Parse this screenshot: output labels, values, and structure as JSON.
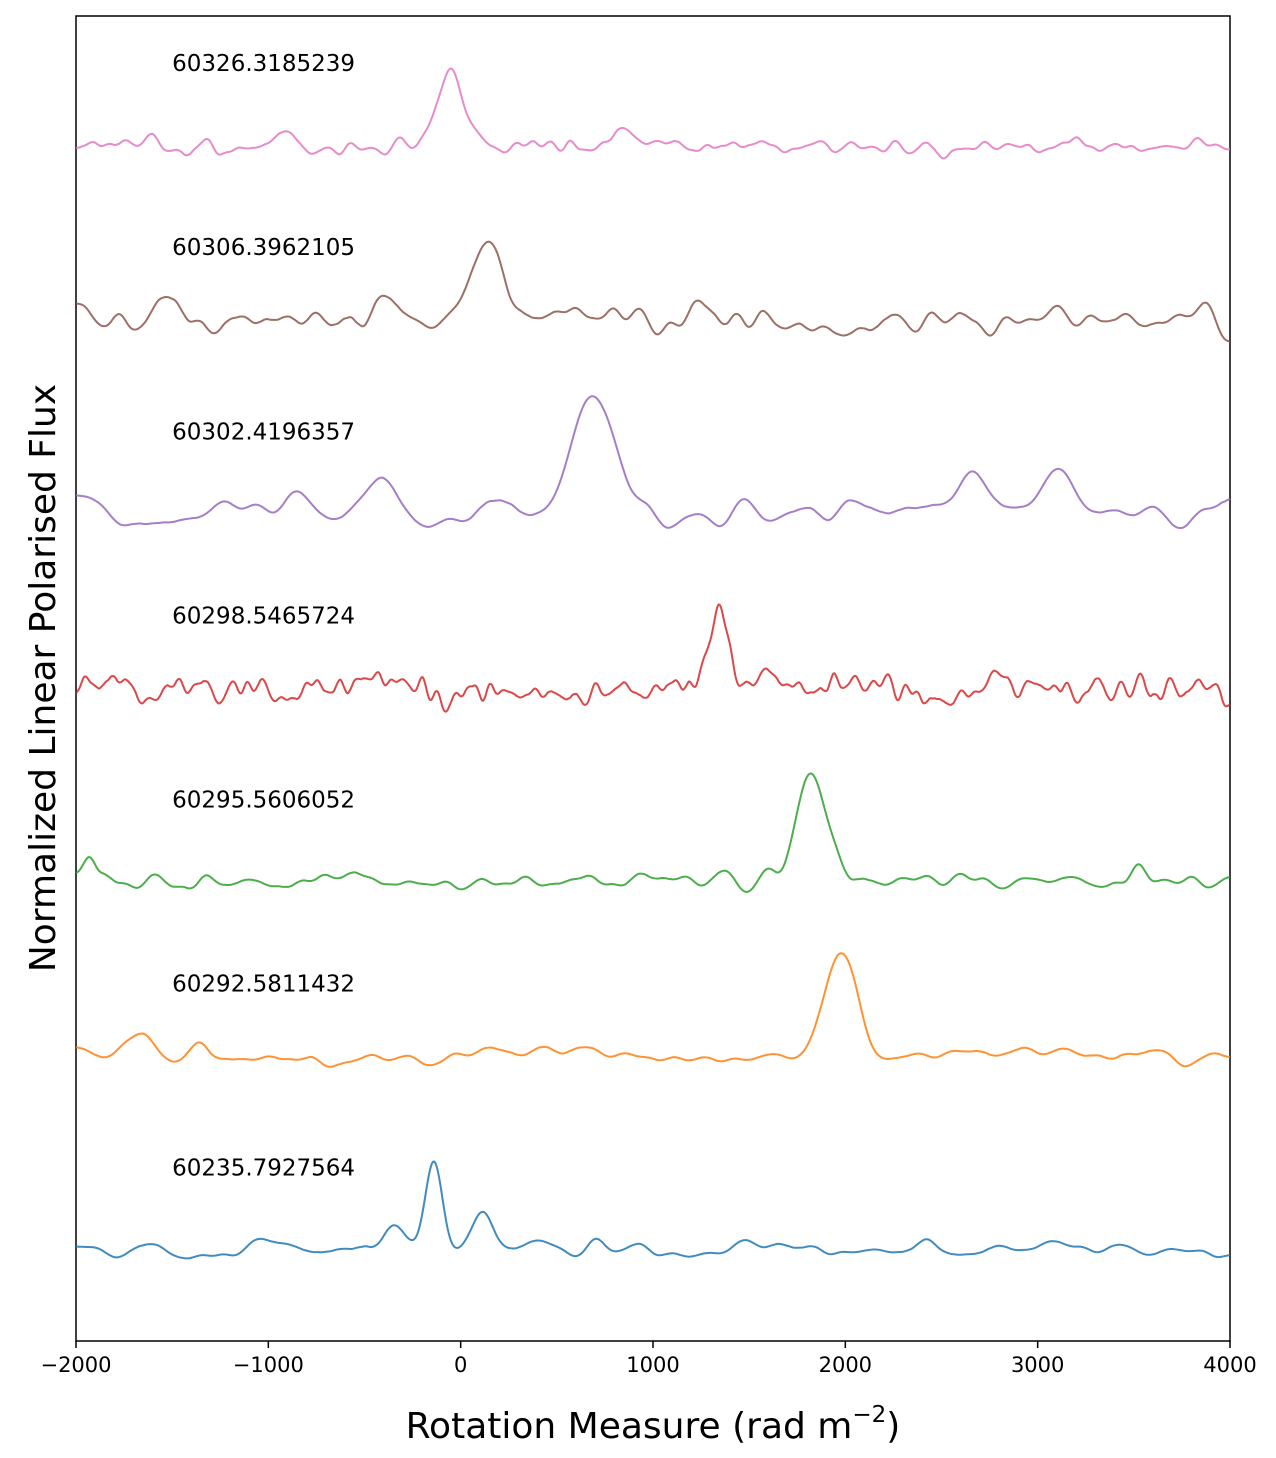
{
  "chart_data": {
    "type": "line",
    "title": "",
    "xlabel_main": "Rotation Measure (rad m",
    "xlabel_sup": "−2",
    "xlabel_close": ")",
    "ylabel": "Normalized Linear Polarised Flux",
    "xlim": [
      -2000,
      4000
    ],
    "xticks": [
      -2000,
      -1000,
      0,
      1000,
      2000,
      3000,
      4000
    ],
    "xtick_labels": [
      "−2000",
      "−1000",
      "0",
      "1000",
      "2000",
      "3000",
      "4000"
    ],
    "yticks_shown": false,
    "offset_step": 1.0,
    "ylim": [
      -0.45,
      6.75
    ],
    "series": [
      {
        "name": "60235.7927564",
        "offset": 0,
        "color": "#1f77b4",
        "baseline": 0.045,
        "noise_amp": 0.06,
        "smooth": 7,
        "peaks": [
          [
            -140,
            0.5,
            45
          ],
          [
            120,
            0.2,
            50
          ],
          [
            -350,
            0.12,
            60
          ],
          [
            700,
            0.05,
            40
          ],
          [
            2430,
            0.06,
            40
          ]
        ]
      },
      {
        "name": "60292.5811432",
        "offset": 1,
        "color": "#ff7f0e",
        "baseline": 0.1,
        "noise_amp": 0.06,
        "smooth": 7,
        "peaks": [
          [
            1980,
            0.55,
            85
          ],
          [
            -1650,
            0.1,
            50
          ],
          [
            -1350,
            0.05,
            40
          ]
        ]
      },
      {
        "name": "60295.5606052",
        "offset": 2,
        "color": "#2ca02c",
        "baseline": 0.05,
        "noise_amp": 0.06,
        "smooth": 6,
        "peaks": [
          [
            1820,
            0.55,
            80
          ],
          [
            -1930,
            0.12,
            30
          ],
          [
            3530,
            0.08,
            40
          ]
        ]
      },
      {
        "name": "60298.5465724",
        "offset": 3,
        "color": "#d62728",
        "baseline": 0.1,
        "noise_amp": 0.13,
        "smooth": 3,
        "peaks": [
          [
            1340,
            0.42,
            45
          ],
          [
            3020,
            0.12,
            40
          ]
        ]
      },
      {
        "name": "60302.4196357",
        "offset": 4,
        "color": "#9467bd",
        "baseline": 0.05,
        "noise_amp": 0.1,
        "smooth": 9,
        "peaks": [
          [
            680,
            0.6,
            110
          ],
          [
            3120,
            0.3,
            95
          ],
          [
            2650,
            0.2,
            80
          ],
          [
            -400,
            0.2,
            90
          ],
          [
            -850,
            0.15,
            70
          ]
        ]
      },
      {
        "name": "60306.3962105",
        "offset": 5,
        "color": "#8c564b",
        "baseline": 0.1,
        "noise_amp": 0.12,
        "smooth": 6,
        "peaks": [
          [
            160,
            0.45,
            80
          ],
          [
            -1500,
            0.12,
            60
          ],
          [
            -380,
            0.1,
            50
          ],
          [
            1300,
            0.1,
            50
          ]
        ]
      },
      {
        "name": "60326.3185239",
        "offset": 6,
        "color": "#e377c2",
        "baseline": 0.04,
        "noise_amp": 0.07,
        "smooth": 4,
        "peaks": [
          [
            -50,
            0.4,
            70
          ],
          [
            -900,
            0.1,
            50
          ],
          [
            850,
            0.08,
            40
          ]
        ]
      }
    ],
    "label_x_data": -1500,
    "label_dy": 0.45
  }
}
